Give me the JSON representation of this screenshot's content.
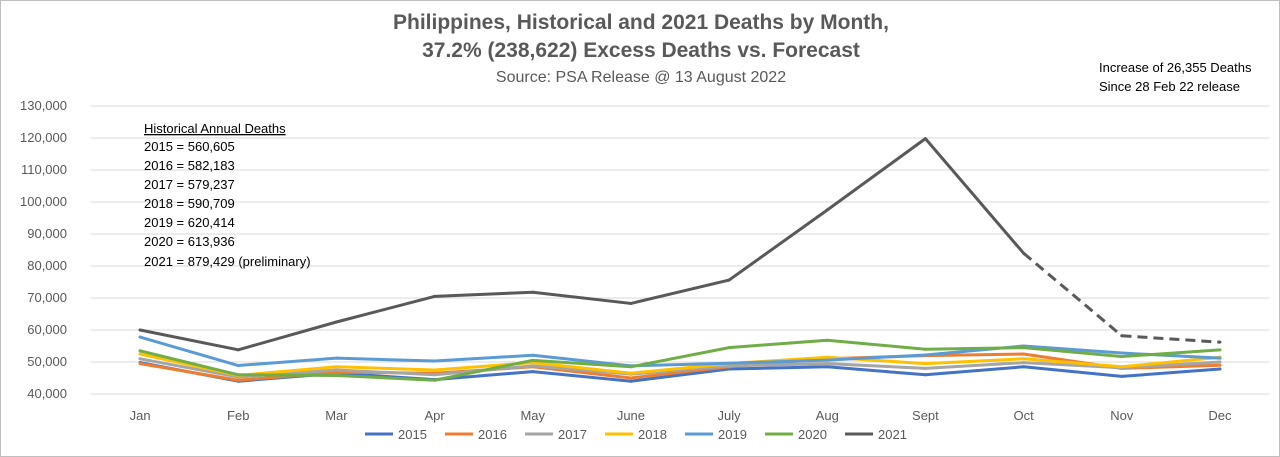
{
  "chart_data": {
    "type": "line",
    "title_line1": "Philippines, Historical and 2021 Deaths by Month,",
    "title_line2": "37.2% (238,622) Excess Deaths vs. Forecast",
    "subtitle": "Source: PSA Release @ 13 August 2022",
    "categories": [
      "Jan",
      "Feb",
      "Mar",
      "Apr",
      "May",
      "June",
      "July",
      "Aug",
      "Sept",
      "Oct",
      "Nov",
      "Dec"
    ],
    "ylim": [
      40000,
      130000
    ],
    "yticks": [
      40000,
      50000,
      60000,
      70000,
      80000,
      90000,
      100000,
      110000,
      120000,
      130000
    ],
    "ytick_labels": [
      "40,000",
      "50,000",
      "60,000",
      "70,000",
      "80,000",
      "90,000",
      "100,000",
      "110,000",
      "120,000",
      "130,000"
    ],
    "grid": true,
    "legend_position": "bottom",
    "series": [
      {
        "name": "2015",
        "color": "#4472c4",
        "values": [
          49800,
          44000,
          46500,
          44500,
          47000,
          44000,
          47800,
          48500,
          46000,
          48500,
          45500,
          47800
        ]
      },
      {
        "name": "2016",
        "color": "#ed7d31",
        "values": [
          49500,
          44300,
          46800,
          46500,
          48500,
          45000,
          48500,
          51000,
          52000,
          52500,
          48000,
          49000
        ]
      },
      {
        "name": "2017",
        "color": "#a5a5a5",
        "values": [
          51000,
          45300,
          47500,
          46000,
          48800,
          46200,
          48800,
          49500,
          48000,
          49800,
          48200,
          50000
        ]
      },
      {
        "name": "2018",
        "color": "#ffc000",
        "values": [
          52500,
          45800,
          48500,
          47500,
          49800,
          46500,
          49500,
          51500,
          49500,
          51000,
          48500,
          51500
        ]
      },
      {
        "name": "2019",
        "color": "#5b9bd5",
        "values": [
          57800,
          48900,
          51200,
          50300,
          52100,
          48800,
          49600,
          50600,
          52200,
          55000,
          52800,
          51200
        ]
      },
      {
        "name": "2020",
        "color": "#70ad47",
        "values": [
          53500,
          46000,
          45800,
          44300,
          50500,
          48500,
          54500,
          56800,
          54000,
          54500,
          51700,
          53800
        ]
      },
      {
        "name": "2021",
        "color": "#595959",
        "values": [
          60000,
          53800,
          62500,
          70500,
          71800,
          68300,
          75600,
          97500,
          119800,
          84000,
          58200,
          56200
        ],
        "dashed_from_index": 9
      }
    ],
    "annotations": {
      "historical_heading": "Historical Annual Deaths",
      "historical_lines": [
        "2015 = 560,605",
        "2016 = 582,183",
        "2017 = 579,237",
        "2018 = 590,709",
        "2019 = 620,414",
        "2020 = 613,936",
        "2021 = 879,429 (preliminary)"
      ],
      "increase_line1": "Increase of 26,355 Deaths",
      "increase_line2": "Since 28 Feb 22 release"
    }
  }
}
